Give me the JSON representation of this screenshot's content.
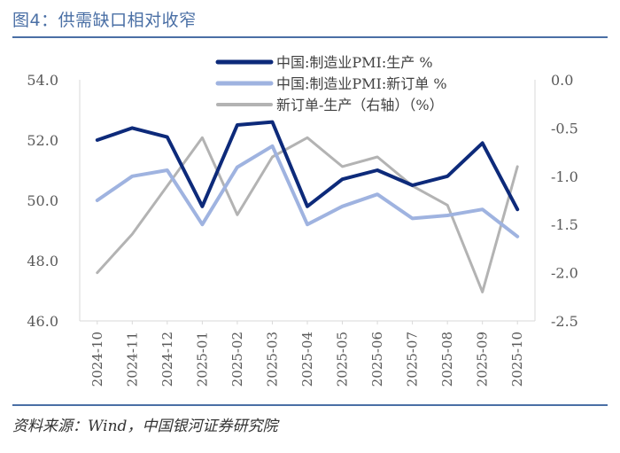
{
  "figure_title": "图4：供需缺口相对收窄",
  "source": "资料来源：Wind，中国银河证券研究院",
  "chart_data": {
    "type": "line",
    "categories": [
      "2024-10",
      "2024-11",
      "2024-12",
      "2025-01",
      "2025-02",
      "2025-03",
      "2025-04",
      "2025-05",
      "2025-06",
      "2025-07",
      "2025-08",
      "2025-09",
      "2025-10"
    ],
    "left_axis": {
      "ylim": [
        46.0,
        54.0
      ],
      "ticks": [
        "54.0",
        "52.0",
        "50.0",
        "48.0",
        "46.0"
      ],
      "tick_values": [
        54,
        52,
        50,
        48,
        46
      ]
    },
    "right_axis": {
      "ylim": [
        -2.5,
        0.0
      ],
      "ticks": [
        "0.0",
        "-0.5",
        "-1.0",
        "-1.5",
        "-2.0",
        "-2.5"
      ],
      "tick_values": [
        0,
        -0.5,
        -1,
        -1.5,
        -2,
        -2.5
      ]
    },
    "grid": false,
    "legend_position": "top-right",
    "series": [
      {
        "name": "中国:制造业PMI:生产 %",
        "axis": "left",
        "color": "#0d2a7a",
        "width": 4,
        "values": [
          52.0,
          52.4,
          52.1,
          49.8,
          52.5,
          52.6,
          49.8,
          50.7,
          51.0,
          50.5,
          50.8,
          51.9,
          49.7
        ]
      },
      {
        "name": "中国:制造业PMI:新订单 %",
        "axis": "left",
        "color": "#9fb3e0",
        "width": 4,
        "values": [
          50.0,
          50.8,
          51.0,
          49.2,
          51.1,
          51.8,
          49.2,
          49.8,
          50.2,
          49.4,
          49.5,
          49.7,
          48.8
        ]
      },
      {
        "name": "新订单-生产（右轴）（%）",
        "axis": "right",
        "color": "#b3b3b3",
        "width": 3,
        "values": [
          -2.0,
          -1.6,
          -1.1,
          -0.6,
          -1.4,
          -0.8,
          -0.6,
          -0.9,
          -0.8,
          -1.1,
          -1.3,
          -2.2,
          -0.9
        ]
      }
    ]
  }
}
